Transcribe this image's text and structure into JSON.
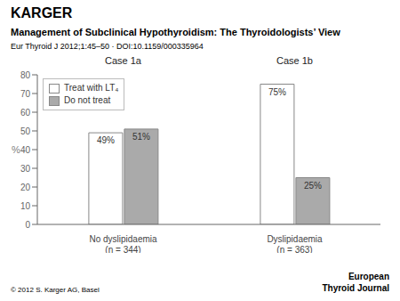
{
  "chart_data": {
    "type": "bar",
    "title": "Management of Subclinical Hypothyroidism: The Thyroidologists’ View",
    "subtitle": "Eur Thyroid J 2012;1:45–50 · DOI:10.1159/000335964",
    "annotations": [
      "KARGER",
      "© 2012 S. Karger AG, Basel",
      "European\nThyroid Journal",
      "Case 1a",
      "Case 1b"
    ],
    "categories": [
      "No dyslipidaemia\n(n = 344)",
      "Dyslipidaemia\n(n = 363)"
    ],
    "series": [
      {
        "name": "Treat with LT₄",
        "color": "#ffffff",
        "values": [
          49,
          75
        ],
        "value_labels": [
          "49%",
          "75%"
        ]
      },
      {
        "name": "Do not treat",
        "color": "#aaaaaa",
        "values": [
          51,
          25
        ],
        "value_labels": [
          "51%",
          "25%"
        ]
      }
    ],
    "ylabel": "%",
    "ylim": [
      0,
      80
    ],
    "yticks": [
      0,
      10,
      20,
      30,
      40,
      50,
      60,
      70,
      80
    ],
    "grid": false,
    "legend": "upper left",
    "data_labels": true
  }
}
